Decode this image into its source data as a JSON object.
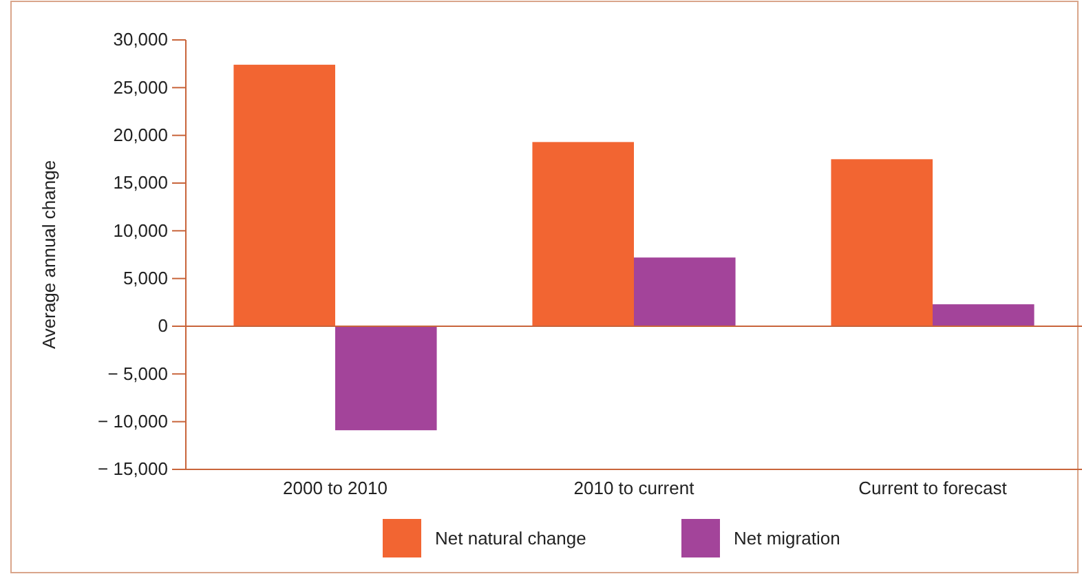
{
  "chart_data": {
    "type": "bar",
    "ylabel": "Average annual change",
    "categories": [
      "2000 to 2010",
      "2010 to current",
      "Current to forecast"
    ],
    "series": [
      {
        "name": "Net natural change",
        "color": "#f26532",
        "values": [
          27400,
          19300,
          17500
        ]
      },
      {
        "name": "Net migration",
        "color": "#a3449a",
        "values": [
          -10900,
          7200,
          2300
        ]
      }
    ],
    "ylim": [
      -15000,
      30000
    ],
    "yticks": [
      {
        "value": -15000,
        "label": "− 15,000"
      },
      {
        "value": -10000,
        "label": "− 10,000"
      },
      {
        "value": -5000,
        "label": "− 5,000"
      },
      0,
      {
        "value": 5000,
        "label": "5,000"
      },
      {
        "value": 10000,
        "label": "10,000"
      },
      {
        "value": 15000,
        "label": "15,000"
      },
      {
        "value": 20000,
        "label": "20,000"
      },
      {
        "value": 25000,
        "label": "25,000"
      },
      {
        "value": 30000,
        "label": "30,000"
      }
    ],
    "ref_lines": [
      {
        "axis": "y",
        "value": 0,
        "color": "#c8643a"
      }
    ],
    "grid": false,
    "legend": "bottom"
  }
}
